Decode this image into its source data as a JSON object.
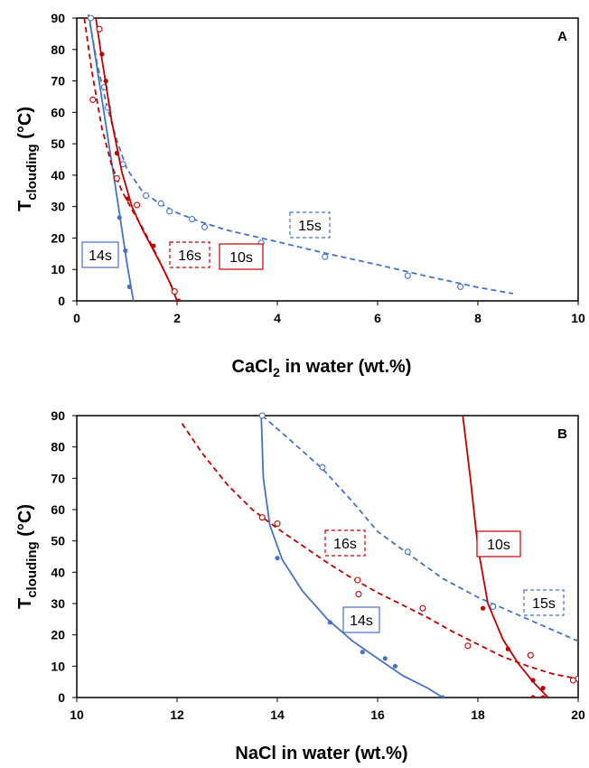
{
  "chart_data": [
    {
      "type": "scatter",
      "panel_label": "A",
      "xlabel_main": "CaCl",
      "xlabel_sub": "2",
      "xlabel_rest": " in water (wt.%)",
      "ylabel_main": "T",
      "ylabel_sub": "clouding",
      "ylabel_rest": " (°C)",
      "xlim": [
        0,
        10
      ],
      "ylim": [
        0,
        90
      ],
      "xticks": [
        "0",
        "2",
        "4",
        "6",
        "8",
        "10"
      ],
      "yticks": [
        "0",
        "10",
        "20",
        "30",
        "40",
        "50",
        "60",
        "70",
        "80",
        "90"
      ],
      "grid": false,
      "series": [
        {
          "name": "14s",
          "color": "#4472c4",
          "marker": "filled-circle",
          "line": "solid",
          "points": [
            [
              0.3,
              90
            ],
            [
              0.85,
              26.5
            ],
            [
              0.97,
              16
            ],
            [
              1.05,
              4.5
            ]
          ],
          "fit": [
            [
              0.25,
              90
            ],
            [
              0.6,
              54
            ],
            [
              0.85,
              28
            ],
            [
              1.0,
              12
            ],
            [
              1.13,
              0
            ]
          ]
        },
        {
          "name": "15s",
          "color": "#4472c4",
          "marker": "open-circle",
          "line": "dashed",
          "points": [
            [
              0.28,
              90
            ],
            [
              0.55,
              68
            ],
            [
              0.62,
              61.5
            ],
            [
              0.92,
              43.5
            ],
            [
              1.38,
              33.5
            ],
            [
              1.68,
              31
            ],
            [
              1.85,
              28.5
            ],
            [
              2.3,
              26
            ],
            [
              2.55,
              23.5
            ],
            [
              3.68,
              18.5
            ],
            [
              4.95,
              14
            ],
            [
              6.6,
              8
            ],
            [
              7.65,
              4.5
            ]
          ],
          "fit": [
            [
              0.2,
              94
            ],
            [
              0.4,
              76
            ],
            [
              0.6,
              62
            ],
            [
              0.8,
              51
            ],
            [
              1.0,
              42
            ],
            [
              1.3,
              35
            ],
            [
              1.6,
              31.5
            ],
            [
              2.0,
              28
            ],
            [
              2.5,
              25
            ],
            [
              3.0,
              22.5
            ],
            [
              4.0,
              18.8
            ],
            [
              5.0,
              15
            ],
            [
              6.0,
              11.5
            ],
            [
              7.0,
              7.8
            ],
            [
              8.0,
              4.3
            ],
            [
              8.7,
              2.3
            ]
          ]
        },
        {
          "name": "10s",
          "color": "#c00000",
          "marker": "filled-circle",
          "line": "solid",
          "points": [
            [
              0.45,
              86.5
            ],
            [
              0.5,
              78.5
            ],
            [
              0.58,
              70
            ],
            [
              0.8,
              47
            ],
            [
              1.02,
              32.5
            ],
            [
              1.53,
              17.5
            ],
            [
              2.03,
              0
            ]
          ],
          "fit": [
            [
              0.38,
              90
            ],
            [
              0.5,
              77
            ],
            [
              0.7,
              57
            ],
            [
              0.9,
              41
            ],
            [
              1.1,
              30
            ],
            [
              1.3,
              23
            ],
            [
              1.5,
              17
            ],
            [
              1.7,
              11
            ],
            [
              1.85,
              6
            ],
            [
              2.0,
              0
            ]
          ]
        },
        {
          "name": "16s",
          "color": "#c00000",
          "marker": "open-circle",
          "line": "dashed",
          "points": [
            [
              0.45,
              86.5
            ],
            [
              0.32,
              64
            ],
            [
              0.8,
              39
            ],
            [
              1.2,
              30.5
            ],
            [
              1.95,
              3
            ]
          ],
          "fit": [
            [
              0.15,
              90
            ],
            [
              0.3,
              73
            ],
            [
              0.5,
              55
            ],
            [
              0.7,
              43
            ],
            [
              0.9,
              35
            ],
            [
              1.1,
              29
            ],
            [
              1.3,
              23.5
            ],
            [
              1.5,
              17.5
            ],
            [
              1.7,
              11
            ],
            [
              1.85,
              6
            ],
            [
              2.0,
              1
            ]
          ]
        }
      ],
      "annotations": [
        "14s",
        "16s",
        "10s",
        "15s"
      ]
    },
    {
      "type": "scatter",
      "panel_label": "B",
      "xlabel_main": "NaCl in water (wt.%)",
      "ylabel_main": "T",
      "ylabel_sub": "clouding",
      "ylabel_rest": " (°C)",
      "xlim": [
        10,
        20
      ],
      "ylim": [
        0,
        90
      ],
      "xticks": [
        "10",
        "12",
        "14",
        "16",
        "18",
        "20"
      ],
      "yticks": [
        "0",
        "10",
        "20",
        "30",
        "40",
        "50",
        "60",
        "70",
        "80",
        "90"
      ],
      "grid": false,
      "series": [
        {
          "name": "14s",
          "color": "#4472c4",
          "marker": "filled-circle",
          "line": "solid",
          "points": [
            [
              13.7,
              90
            ],
            [
              14.0,
              44.5
            ],
            [
              15.05,
              24
            ],
            [
              15.7,
              14.5
            ],
            [
              16.15,
              12.5
            ],
            [
              16.35,
              10
            ],
            [
              17.3,
              0
            ]
          ],
          "fit": [
            [
              13.68,
              90
            ],
            [
              13.72,
              70
            ],
            [
              13.85,
              55
            ],
            [
              14.1,
              44
            ],
            [
              14.5,
              34
            ],
            [
              15.0,
              25
            ],
            [
              15.5,
              18
            ],
            [
              16.0,
              12.5
            ],
            [
              16.5,
              7
            ],
            [
              17.0,
              3
            ],
            [
              17.3,
              0
            ]
          ]
        },
        {
          "name": "15s",
          "color": "#4472c4",
          "marker": "open-circle",
          "line": "dashed",
          "points": [
            [
              13.7,
              90
            ],
            [
              14.9,
              73.5
            ],
            [
              16.6,
              46.5
            ],
            [
              18.3,
              29
            ]
          ],
          "fit": [
            [
              13.7,
              90
            ],
            [
              14.2,
              83
            ],
            [
              14.9,
              73
            ],
            [
              15.5,
              62.5
            ],
            [
              16.0,
              53
            ],
            [
              16.6,
              46
            ],
            [
              17.3,
              38
            ],
            [
              18.0,
              32
            ],
            [
              18.5,
              28.5
            ],
            [
              19.0,
              25
            ],
            [
              19.5,
              21.5
            ],
            [
              20.0,
              18
            ]
          ]
        },
        {
          "name": "10s",
          "color": "#c00000",
          "marker": "filled-circle",
          "line": "solid",
          "points": [
            [
              18.1,
              28.5
            ],
            [
              18.6,
              15.5
            ],
            [
              19.1,
              5.5
            ],
            [
              19.1,
              0
            ],
            [
              19.3,
              3
            ],
            [
              19.3,
              0
            ]
          ],
          "fit": [
            [
              17.7,
              90
            ],
            [
              17.85,
              70
            ],
            [
              18.0,
              48
            ],
            [
              18.2,
              30
            ],
            [
              18.5,
              18.5
            ],
            [
              18.8,
              11
            ],
            [
              19.1,
              5
            ],
            [
              19.4,
              0
            ]
          ]
        },
        {
          "name": "16s",
          "color": "#c00000",
          "marker": "open-circle",
          "line": "dashed",
          "points": [
            [
              13.7,
              57.5
            ],
            [
              14.0,
              55.5
            ],
            [
              15.6,
              37.5
            ],
            [
              15.62,
              33
            ],
            [
              16.9,
              28.5
            ],
            [
              17.8,
              16.5
            ],
            [
              19.05,
              13.5
            ],
            [
              19.9,
              5.5
            ],
            [
              20.0,
              6
            ]
          ],
          "fit": [
            [
              12.1,
              87.5
            ],
            [
              12.5,
              78
            ],
            [
              13.0,
              68
            ],
            [
              13.5,
              60
            ],
            [
              14.0,
              54
            ],
            [
              14.5,
              48.5
            ],
            [
              15.0,
              43
            ],
            [
              15.5,
              38
            ],
            [
              16.0,
              33.5
            ],
            [
              16.5,
              29.5
            ],
            [
              17.0,
              25.5
            ],
            [
              17.5,
              21
            ],
            [
              18.0,
              17
            ],
            [
              18.5,
              13
            ],
            [
              19.0,
              10
            ],
            [
              19.5,
              7.5
            ],
            [
              20.0,
              6
            ]
          ]
        }
      ],
      "annotations": [
        "16s",
        "10s",
        "14s",
        "15s"
      ]
    }
  ]
}
